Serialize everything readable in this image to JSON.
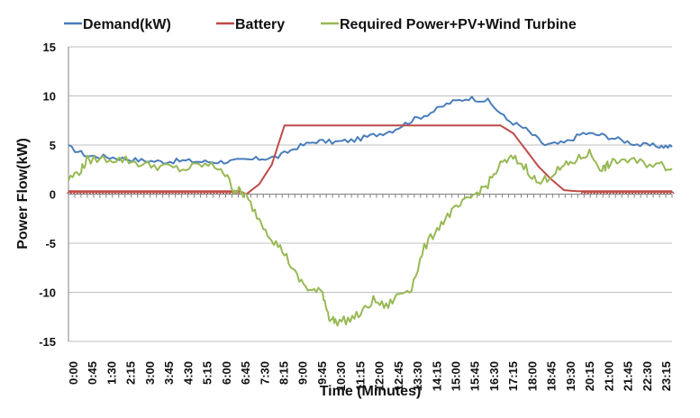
{
  "chart_data": {
    "type": "line",
    "title": "",
    "xlabel": "Time (Minutes)",
    "ylabel": "Power Flow(kW)",
    "ylim": [
      -15,
      15
    ],
    "yticks": [
      -15,
      -10,
      -5,
      0,
      5,
      10,
      15
    ],
    "xlim": [
      0,
      1425
    ],
    "grid": "horizontal",
    "legend_position": "top",
    "categories": [
      "0:00",
      "0:45",
      "1:30",
      "2:15",
      "3:00",
      "3:45",
      "4:30",
      "5:15",
      "6:00",
      "6:45",
      "7:30",
      "8:15",
      "9:00",
      "9:45",
      "10:30",
      "11:15",
      "12:00",
      "12:45",
      "13:30",
      "14:15",
      "15:00",
      "15:45",
      "16:30",
      "17:15",
      "18:00",
      "18:45",
      "19:30",
      "20:15",
      "21:00",
      "21:45",
      "22:30",
      "23:15"
    ],
    "series": [
      {
        "name": "Demand(kW)",
        "color": "#4a7ebb",
        "x": [
          0,
          45,
          90,
          135,
          180,
          225,
          270,
          315,
          360,
          405,
          450,
          495,
          540,
          585,
          630,
          675,
          720,
          765,
          810,
          855,
          900,
          945,
          990,
          1035,
          1080,
          1125,
          1170,
          1215,
          1260,
          1305,
          1350,
          1395,
          1425
        ],
        "y": [
          4.8,
          3.9,
          3.8,
          3.6,
          3.4,
          3.3,
          3.4,
          3.3,
          3.3,
          3.4,
          3.6,
          3.8,
          4.8,
          5.4,
          5.3,
          5.5,
          6.0,
          6.5,
          7.5,
          8.3,
          9.3,
          9.8,
          9.5,
          7.6,
          6.6,
          5.0,
          5.2,
          6.2,
          6.0,
          5.5,
          5.0,
          4.9,
          4.8
        ]
      },
      {
        "name": "Battery",
        "color": "#be4b48",
        "x": [
          0,
          345,
          405,
          420,
          450,
          480,
          510,
          540,
          570,
          600,
          630,
          660,
          690,
          720,
          750,
          780,
          810,
          840,
          870,
          900,
          930,
          960,
          990,
          1020,
          1050,
          1080,
          1110,
          1140,
          1170,
          1200,
          1215,
          1425
        ],
        "y": [
          0.3,
          0.3,
          0.3,
          0.0,
          1.0,
          3.0,
          7.0,
          7.0,
          7.0,
          7.0,
          7.0,
          7.0,
          7.0,
          7.0,
          7.0,
          7.0,
          7.0,
          7.0,
          7.0,
          7.0,
          7.0,
          7.0,
          7.0,
          7.0,
          6.2,
          4.5,
          2.8,
          1.5,
          0.4,
          0.3,
          0.3,
          0.3
        ]
      },
      {
        "name": "Required Power+PV+Wind Turbine",
        "color": "#98b954",
        "x": [
          0,
          30,
          45,
          90,
          135,
          180,
          225,
          270,
          315,
          360,
          390,
          405,
          420,
          450,
          480,
          510,
          540,
          570,
          600,
          615,
          630,
          660,
          690,
          720,
          750,
          780,
          810,
          840,
          870,
          900,
          930,
          960,
          990,
          1020,
          1050,
          1080,
          1110,
          1140,
          1170,
          1200,
          1230,
          1260,
          1275,
          1305,
          1350,
          1395,
          1425
        ],
        "y": [
          1.5,
          2.5,
          3.5,
          3.6,
          3.5,
          3.0,
          2.8,
          2.5,
          3.0,
          2.7,
          0.5,
          0.3,
          -0.3,
          -2.5,
          -4.5,
          -6.0,
          -8.5,
          -9.8,
          -10.0,
          -12.5,
          -13.0,
          -12.8,
          -12.2,
          -10.8,
          -11.5,
          -10.2,
          -9.5,
          -5.5,
          -3.5,
          -2.0,
          -1.0,
          0.0,
          1.0,
          3.0,
          3.7,
          2.7,
          1.0,
          2.0,
          2.8,
          3.5,
          4.2,
          2.5,
          3.0,
          3.5,
          3.2,
          3.0,
          2.6
        ]
      }
    ]
  }
}
